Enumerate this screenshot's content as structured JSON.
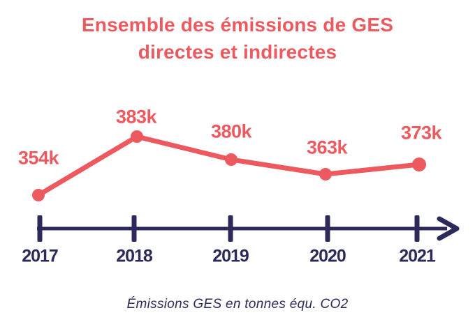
{
  "title": {
    "line1": "Ensemble des émissions de GES",
    "line2": "directes et indirectes"
  },
  "caption": "Émissions GES en tonnes équ. CO2",
  "colors": {
    "accent": "#ec5a5f",
    "navy": "#2b2a5a",
    "background": "#ffffff"
  },
  "chart_data": {
    "type": "line",
    "title": "Ensemble des émissions de GES directes et indirectes",
    "categories": [
      "2017",
      "2018",
      "2019",
      "2020",
      "2021"
    ],
    "values": [
      354000,
      383000,
      380000,
      363000,
      373000
    ],
    "point_labels": [
      "354k",
      "383k",
      "380k",
      "363k",
      "373k"
    ],
    "unit": "tonnes équ. CO2",
    "caption": "Émissions GES en tonnes équ. CO2",
    "xlabel": "",
    "ylabel": "",
    "legend": "none",
    "grid": false,
    "axis_style": "timeline-arrow"
  }
}
